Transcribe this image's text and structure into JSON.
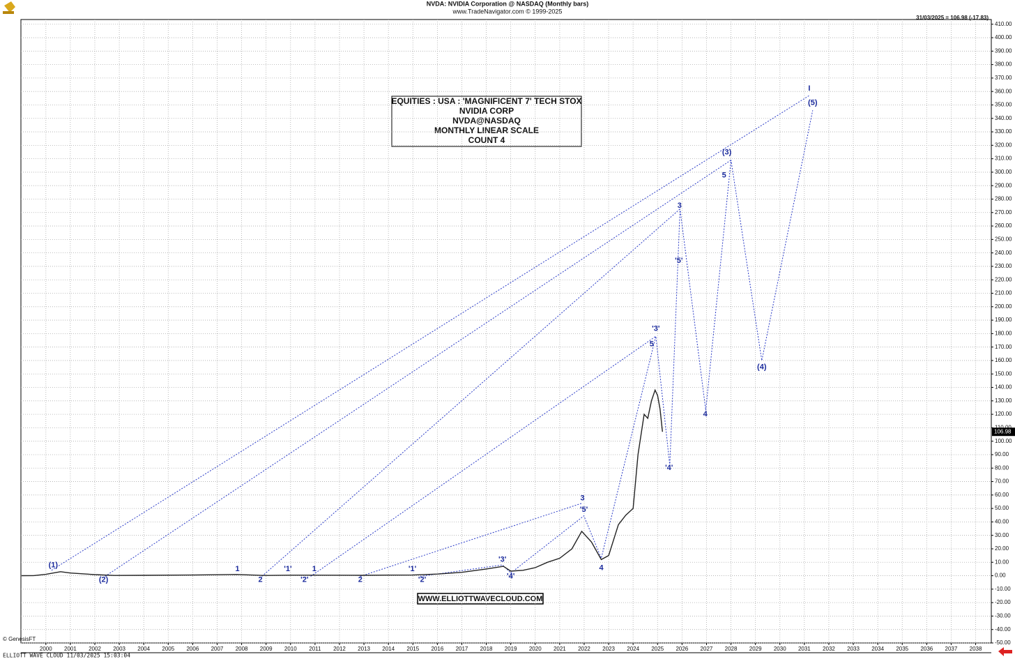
{
  "chart_data": {
    "type": "line",
    "title": "NVDA:  NVIDIA Corporation @ NASDAQ  (Monthly bars)",
    "subtitle": "www.TradeNavigator.com © 1999-2025",
    "last_info": "31/03/2025 = 106.98 (-17.83)",
    "last_price": 106.98,
    "info_box": [
      "EQUITIES : USA : 'MAGNIFICENT 7' TECH STOX",
      "NVIDIA CORP",
      "NVDA@NASDAQ",
      "MONTHLY LINEAR SCALE",
      "COUNT 4"
    ],
    "website": "WWW.ELLIOTTWAVECLOUD.COM",
    "source": "© GenesisFT",
    "footer": "ELLIOTT WAVE CLOUD   11/03/2025 15:03:04",
    "grid": true,
    "xlim": [
      1998.98,
      2038.64
    ],
    "ylim": [
      -50,
      413.5
    ],
    "xticks": [
      2000,
      2001,
      2002,
      2003,
      2004,
      2005,
      2006,
      2007,
      2008,
      2009,
      2010,
      2011,
      2012,
      2013,
      2014,
      2015,
      2016,
      2017,
      2018,
      2019,
      2020,
      2021,
      2022,
      2023,
      2024,
      2025,
      2026,
      2027,
      2028,
      2029,
      2030,
      2031,
      2032,
      2033,
      2034,
      2035,
      2036,
      2037,
      2038
    ],
    "yticks": [
      {
        "value": -50,
        "label": "-50.00"
      },
      {
        "value": -40,
        "label": "-40.00"
      },
      {
        "value": -30,
        "label": "-30.00"
      },
      {
        "value": -20,
        "label": "-20.00"
      },
      {
        "value": -10,
        "label": "-10.00"
      },
      {
        "value": 0,
        "label": "0.00"
      },
      {
        "value": 10,
        "label": "10.00"
      },
      {
        "value": 20,
        "label": "20.00"
      },
      {
        "value": 30,
        "label": "30.00"
      },
      {
        "value": 40,
        "label": "40.00"
      },
      {
        "value": 50,
        "label": "50.00"
      },
      {
        "value": 60,
        "label": "60.00"
      },
      {
        "value": 70,
        "label": "70.00"
      },
      {
        "value": 80,
        "label": "80.00"
      },
      {
        "value": 90,
        "label": "90.00"
      },
      {
        "value": 100,
        "label": "100.00"
      },
      {
        "value": 110,
        "label": "110.00"
      },
      {
        "value": 120,
        "label": "120.00"
      },
      {
        "value": 130,
        "label": "130.00"
      },
      {
        "value": 140,
        "label": "140.00"
      },
      {
        "value": 150,
        "label": "150.00"
      },
      {
        "value": 160,
        "label": "160.00"
      },
      {
        "value": 170,
        "label": "170.00"
      },
      {
        "value": 180,
        "label": "180.00"
      },
      {
        "value": 190,
        "label": "190.00"
      },
      {
        "value": 200,
        "label": "200.00"
      },
      {
        "value": 210,
        "label": "210.00"
      },
      {
        "value": 220,
        "label": "220.00"
      },
      {
        "value": 230,
        "label": "230.00"
      },
      {
        "value": 240,
        "label": "240.00"
      },
      {
        "value": 250,
        "label": "250.00"
      },
      {
        "value": 260,
        "label": "260.00"
      },
      {
        "value": 270,
        "label": "270.00"
      },
      {
        "value": 280,
        "label": "280.00"
      },
      {
        "value": 290,
        "label": "290.00"
      },
      {
        "value": 300,
        "label": "300.00"
      },
      {
        "value": 310,
        "label": "310.00"
      },
      {
        "value": 320,
        "label": "320.00"
      },
      {
        "value": 330,
        "label": "330.00"
      },
      {
        "value": 340,
        "label": "340.00"
      },
      {
        "value": 350,
        "label": "350.00"
      },
      {
        "value": 360,
        "label": "360.00"
      },
      {
        "value": 370,
        "label": "370.00"
      },
      {
        "value": 380,
        "label": "380.00"
      },
      {
        "value": 390,
        "label": "390.00"
      },
      {
        "value": 400,
        "label": "400.00"
      },
      {
        "value": 410,
        "label": "410.00"
      }
    ],
    "series": [
      {
        "color": "#222222",
        "x": [
          1999.0,
          1999.5,
          2000.0,
          2000.6,
          2001.0,
          2002.0,
          2002.8,
          2004.0,
          2006.0,
          2007.8,
          2008.9,
          2010.0,
          2011.0,
          2012.9,
          2014.0,
          2015.0,
          2016.0,
          2017.0,
          2018.0,
          2018.7,
          2019.0,
          2019.5,
          2020.0,
          2020.5,
          2021.0,
          2021.5,
          2021.9,
          2022.3,
          2022.7,
          2023.0,
          2023.4,
          2023.7,
          2024.0,
          2024.2,
          2024.45,
          2024.6,
          2024.75,
          2024.9,
          2025.0,
          2025.1,
          2025.2
        ],
        "values": [
          0.04,
          0.08,
          1,
          3,
          2,
          0.8,
          0.2,
          0.3,
          0.5,
          0.9,
          0.2,
          0.4,
          0.4,
          0.3,
          0.45,
          0.5,
          1.2,
          2.5,
          5,
          7,
          3.4,
          4,
          6,
          10,
          13,
          20,
          33,
          25,
          12,
          15,
          38,
          45,
          50,
          90,
          120,
          117,
          130,
          138,
          134,
          124,
          106.98
        ]
      }
    ],
    "wave_lines": [
      {
        "x": [
          2000.23,
          2031.2
        ],
        "values": [
          4,
          357
        ]
      },
      {
        "x": [
          2002.42,
          2028.0
        ],
        "values": [
          -0.5,
          309
        ]
      },
      {
        "x": [
          2008.83,
          2025.92
        ],
        "values": [
          -0.5,
          272.7
        ]
      },
      {
        "x": [
          2010.82,
          2024.93
        ],
        "values": [
          -0.5,
          178
        ]
      },
      {
        "x": [
          2012.85,
          2021.93
        ],
        "values": [
          -0.5,
          54
        ]
      },
      {
        "x": [
          2015.3,
          2018.66,
          2019.0
        ],
        "values": [
          -0.5,
          8,
          2
        ]
      },
      {
        "x": [
          2019.0,
          2021.99,
          2022.7,
          2024.93,
          2025.5,
          2025.92,
          2026.97,
          2028.0,
          2029.26,
          2031.34
        ],
        "values": [
          2,
          44.5,
          13,
          178,
          82,
          272.7,
          123,
          309,
          160,
          346
        ]
      }
    ],
    "wave_labels": [
      {
        "text": "(1)",
        "x": 2000.3,
        "y": 7.8
      },
      {
        "text": "(2)",
        "x": 2002.36,
        "y": -3
      },
      {
        "text": "1",
        "x": 2007.83,
        "y": 5
      },
      {
        "text": "2",
        "x": 2008.77,
        "y": -3
      },
      {
        "text": "'1'",
        "x": 2009.89,
        "y": 5
      },
      {
        "text": "'2'",
        "x": 2010.57,
        "y": -3
      },
      {
        "text": "1",
        "x": 2010.97,
        "y": 5
      },
      {
        "text": "2",
        "x": 2012.85,
        "y": -3
      },
      {
        "text": "'1'",
        "x": 2014.98,
        "y": 5
      },
      {
        "text": "'2'",
        "x": 2015.38,
        "y": -3
      },
      {
        "text": "'3'",
        "x": 2018.66,
        "y": 12
      },
      {
        "text": "'4'",
        "x": 2019.0,
        "y": -0.5
      },
      {
        "text": "3",
        "x": 2021.93,
        "y": 57.5
      },
      {
        "text": "'5'",
        "x": 2021.99,
        "y": 49
      },
      {
        "text": "4",
        "x": 2022.7,
        "y": 5.7
      },
      {
        "text": "'3'",
        "x": 2024.93,
        "y": 183.5
      },
      {
        "text": "5",
        "x": 2024.76,
        "y": 172
      },
      {
        "text": "'4'",
        "x": 2025.47,
        "y": 80
      },
      {
        "text": "'5'",
        "x": 2025.87,
        "y": 234
      },
      {
        "text": "3",
        "x": 2025.9,
        "y": 275
      },
      {
        "text": "4",
        "x": 2026.95,
        "y": 120
      },
      {
        "text": "5",
        "x": 2027.72,
        "y": 297.6
      },
      {
        "text": "(3)",
        "x": 2027.83,
        "y": 314.7
      },
      {
        "text": "(4)",
        "x": 2029.26,
        "y": 155
      },
      {
        "text": "(5)",
        "x": 2031.34,
        "y": 351.5
      },
      {
        "text": "I",
        "x": 2031.2,
        "y": 362
      }
    ]
  }
}
